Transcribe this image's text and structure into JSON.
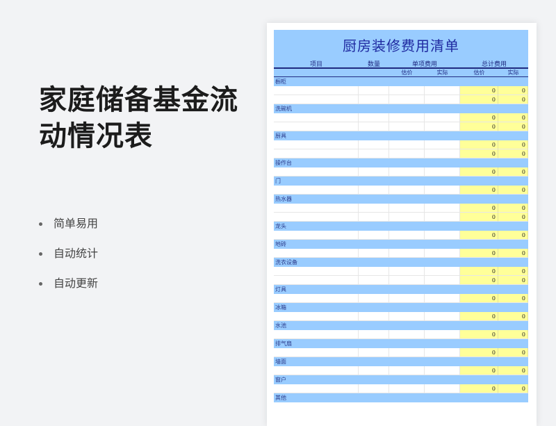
{
  "title": "家庭储备基金流动情况表",
  "features": [
    "简单易用",
    "自动统计",
    "自动更新"
  ],
  "sheet": {
    "title": "厨房装修费用清单",
    "headers": {
      "item": "项目",
      "qty": "数量",
      "unit_cost": "单项费用",
      "total_cost": "总计费用",
      "est": "估价",
      "actual": "实际",
      "est2": "估价",
      "actual2": "实际"
    },
    "categories": [
      {
        "name": "橱柜",
        "rows": [
          [
            "0",
            "0"
          ],
          [
            "0",
            "0"
          ]
        ]
      },
      {
        "name": "洗碗机",
        "rows": [
          [
            "0",
            "0"
          ],
          [
            "0",
            "0"
          ]
        ]
      },
      {
        "name": "厨具",
        "rows": [
          [
            "0",
            "0"
          ],
          [
            "0",
            "0"
          ]
        ]
      },
      {
        "name": "操作台",
        "rows": [
          [
            "0",
            "0"
          ]
        ]
      },
      {
        "name": "门",
        "rows": [
          [
            "0",
            "0"
          ]
        ]
      },
      {
        "name": "热水器",
        "rows": [
          [
            "0",
            "0"
          ],
          [
            "0",
            "0"
          ]
        ]
      },
      {
        "name": "龙头",
        "rows": [
          [
            "0",
            "0"
          ]
        ]
      },
      {
        "name": "地砖",
        "rows": [
          [
            "0",
            "0"
          ]
        ]
      },
      {
        "name": "洗衣设备",
        "rows": [
          [
            "0",
            "0"
          ],
          [
            "0",
            "0"
          ]
        ]
      },
      {
        "name": "灯具",
        "rows": [
          [
            "0",
            "0"
          ]
        ]
      },
      {
        "name": "冰箱",
        "rows": [
          [
            "0",
            "0"
          ]
        ]
      },
      {
        "name": "水池",
        "rows": [
          [
            "0",
            "0"
          ]
        ]
      },
      {
        "name": "排气扇",
        "rows": [
          [
            "0",
            "0"
          ]
        ]
      },
      {
        "name": "墙面",
        "rows": [
          [
            "0",
            "0"
          ]
        ]
      },
      {
        "name": "窗户",
        "rows": [
          [
            "0",
            "0"
          ]
        ]
      },
      {
        "name": "其他",
        "rows": []
      }
    ]
  }
}
